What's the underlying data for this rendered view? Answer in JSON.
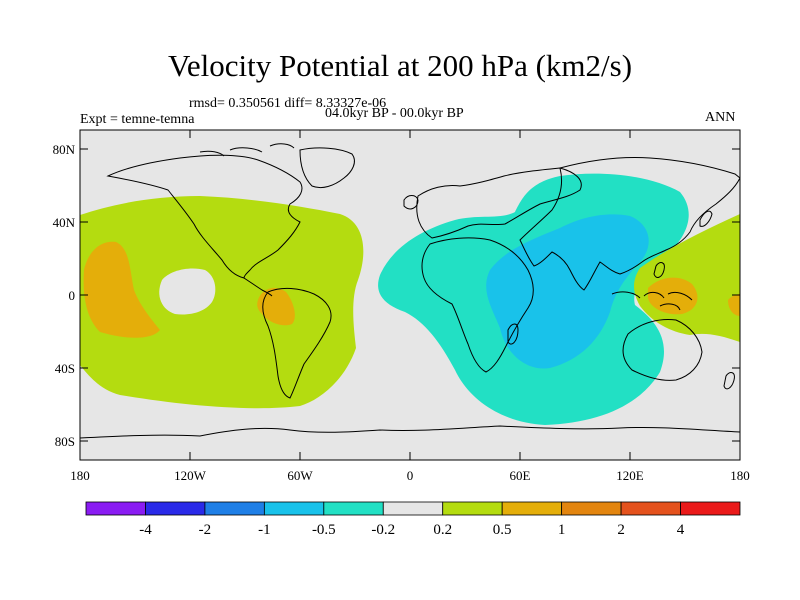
{
  "title": "Velocity Potential at 200 hPa (km2/s)",
  "stats": "rmsd= 0.350561  diff= 8.33327e-06",
  "experiment": "Expt = temne-temna",
  "period": "04.0kyr BP - 00.0kyr BP",
  "season": "ANN",
  "lat_labels": [
    "80N",
    "40N",
    "0",
    "40S",
    "80S"
  ],
  "lon_labels": [
    "180",
    "120W",
    "60W",
    "0",
    "60E",
    "120E",
    "180"
  ],
  "colorbar": {
    "labels": [
      "-4",
      "-2",
      "-1",
      "-0.5",
      "-0.2",
      "0.2",
      "0.5",
      "1",
      "2",
      "4"
    ],
    "colors": [
      "#8a1cf2",
      "#2a2ae8",
      "#1f7fe6",
      "#19c2ea",
      "#22e0c4",
      "#e6e6e6",
      "#b4dc10",
      "#e4ae0a",
      "#e3850f",
      "#e4521d",
      "#ea1a1a"
    ]
  },
  "palette": {
    "ocean_neutral": "#e6e6e6",
    "positive_weak": "#b4dc10",
    "positive_mid": "#e4ae0a",
    "negative_weak": "#22e0c4",
    "negative_mid": "#19c2ea"
  }
}
